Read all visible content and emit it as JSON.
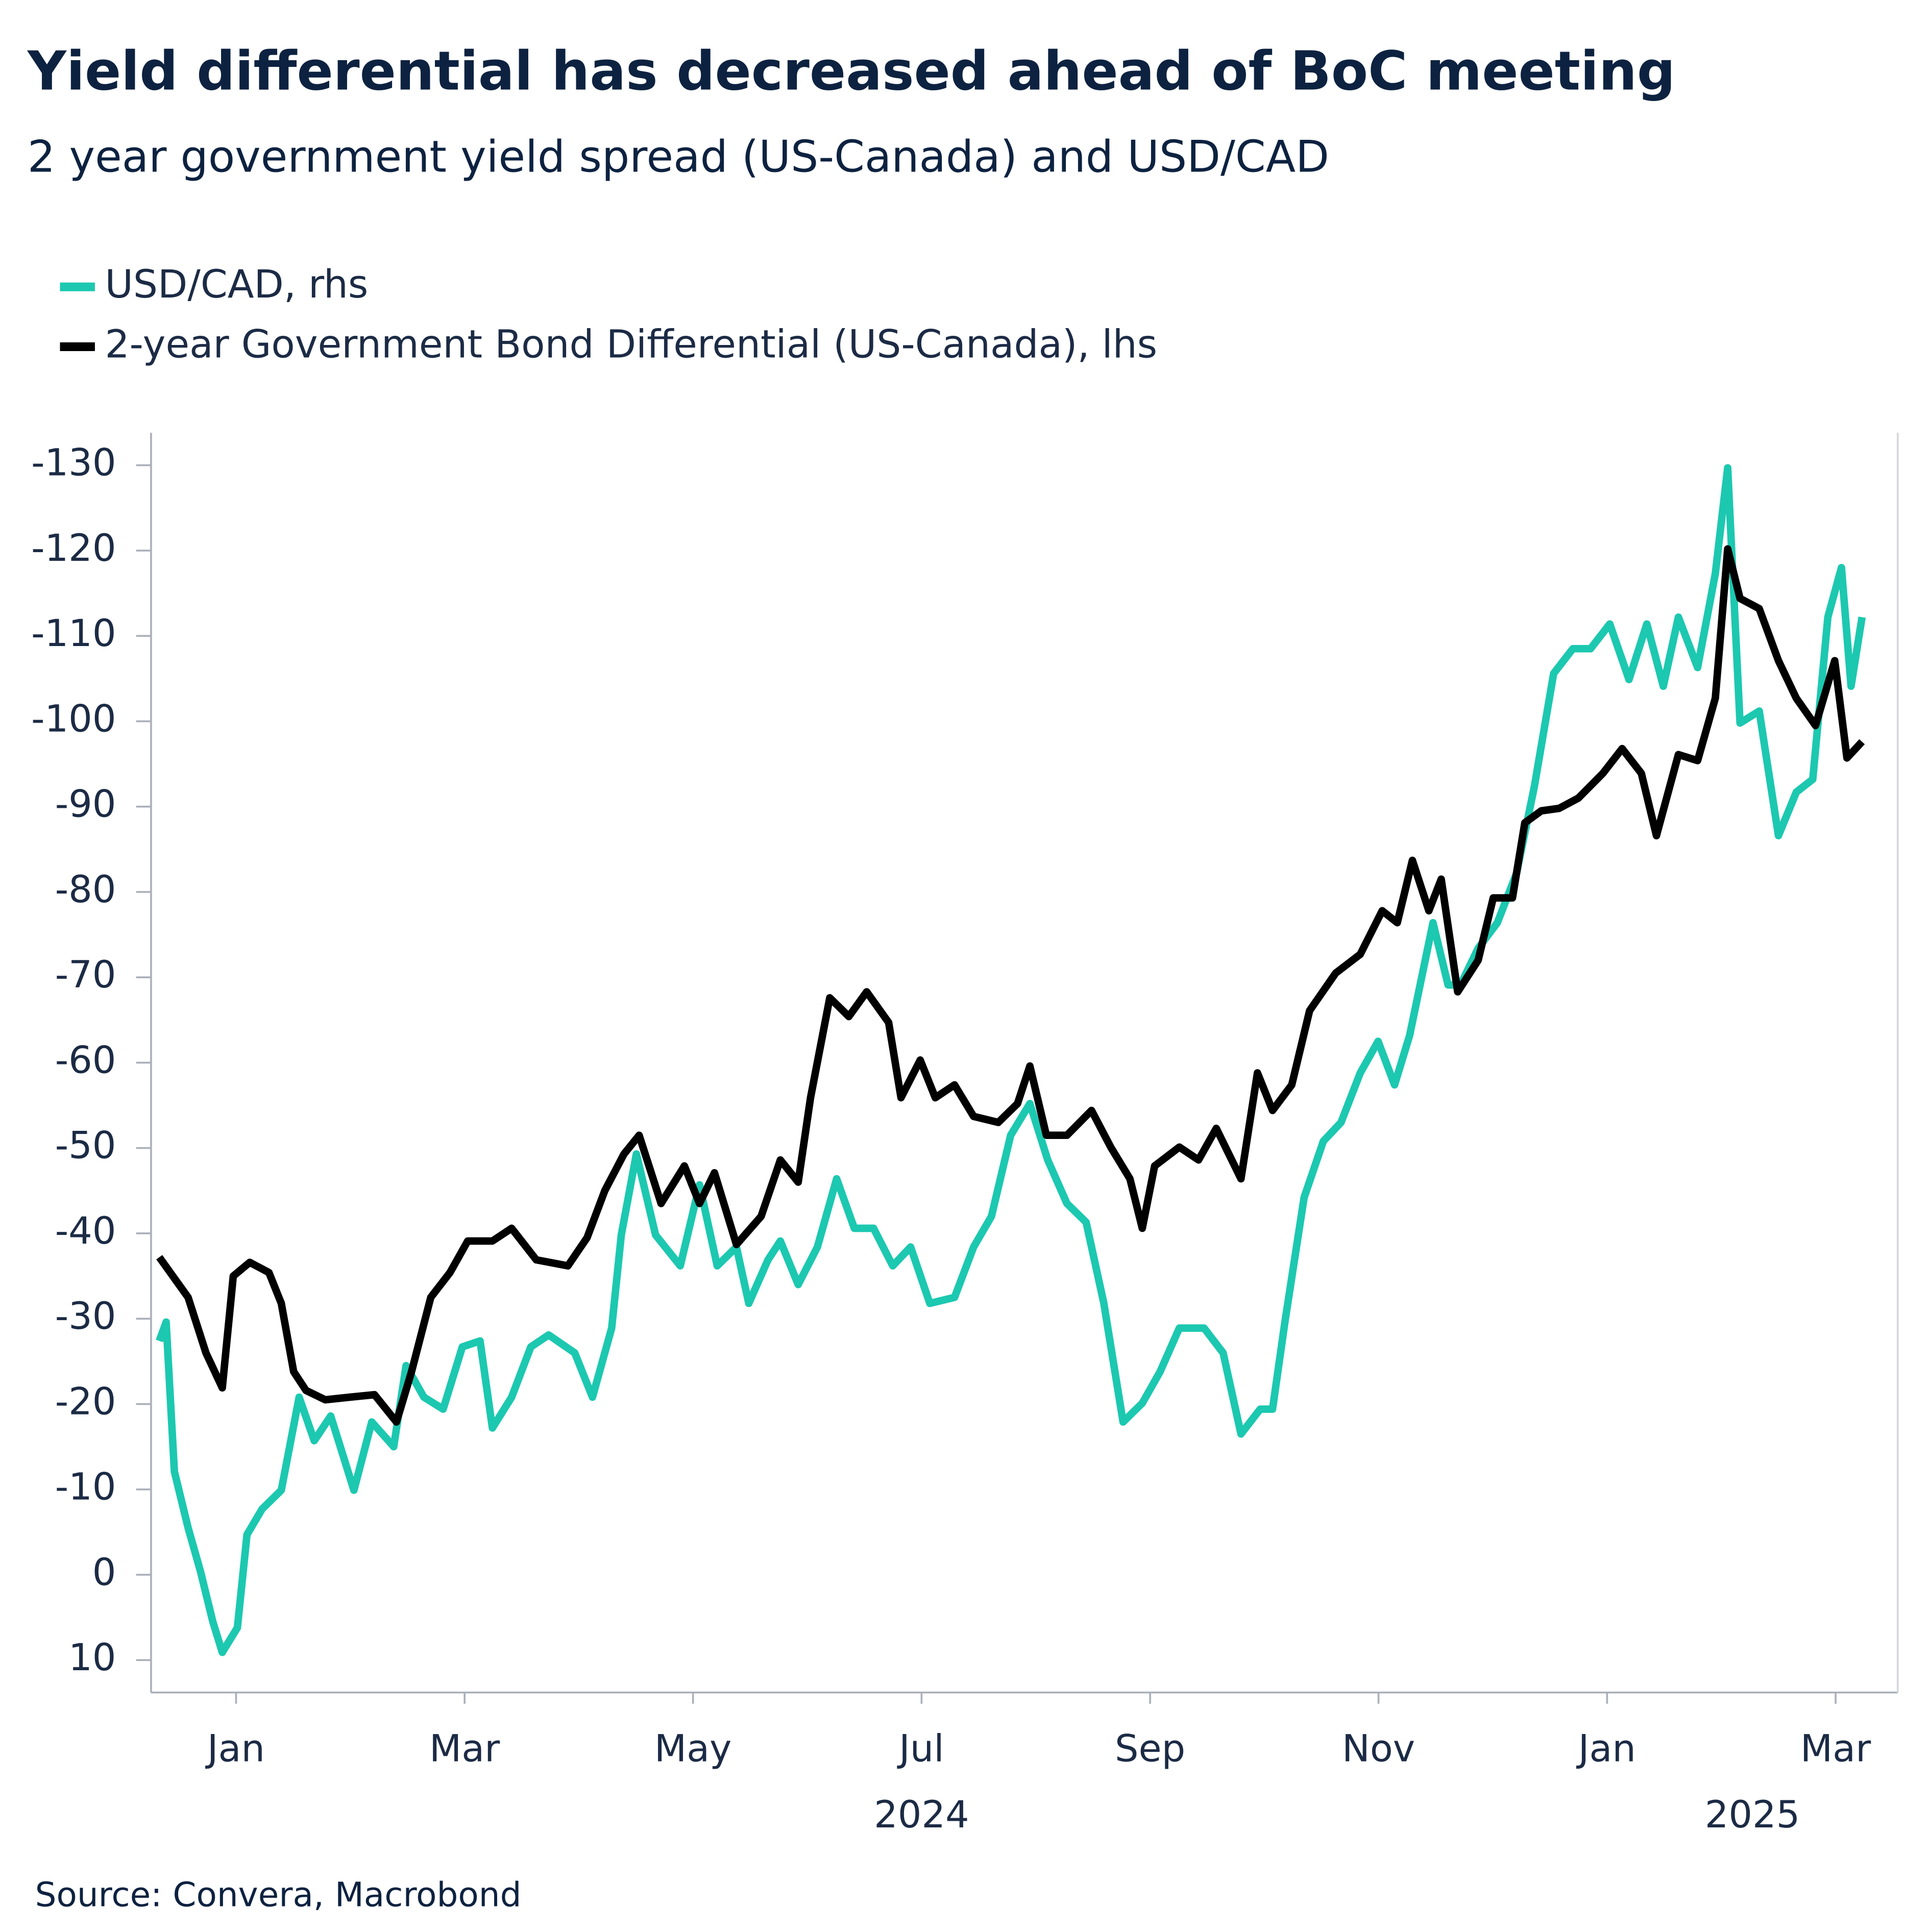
{
  "chart_data": {
    "type": "line",
    "title": "Yield differential has decreased ahead of BoC meeting",
    "subtitle": "2 year government yield spread (US-Canada) and USD/CAD",
    "source": "Source: Convera, Macrobond",
    "ylim": [
      13.8,
      -133.8
    ],
    "yticks": [
      -130,
      -120,
      -110,
      -100,
      -90,
      -80,
      -70,
      -60,
      -50,
      -40,
      -30,
      -20,
      -10,
      0,
      10
    ],
    "xlim": [
      2023.938,
      2025.212
    ],
    "xticks": [
      {
        "value": 2024.0,
        "label": "Jan"
      },
      {
        "value": 2024.1667,
        "label": "Mar"
      },
      {
        "value": 2024.3333,
        "label": "May"
      },
      {
        "value": 2024.5,
        "label": "Jul"
      },
      {
        "value": 2024.6667,
        "label": "Sep"
      },
      {
        "value": 2024.8333,
        "label": "Nov"
      },
      {
        "value": 2025.0,
        "label": "Jan"
      },
      {
        "value": 2025.1667,
        "label": "Mar"
      }
    ],
    "years": [
      "2024",
      "2025"
    ],
    "series": [
      {
        "name": "USD/CAD, rhs",
        "color": "#1cc8b0",
        "x": [
          2023.944,
          2023.949,
          2023.955,
          2023.965,
          2023.974,
          2023.983,
          2023.99,
          2024.001,
          2024.008,
          2024.019,
          2024.033,
          2024.046,
          2024.057,
          2024.069,
          2024.086,
          2024.099,
          2024.115,
          2024.124,
          2024.137,
          2024.151,
          2024.165,
          2024.178,
          2024.187,
          2024.201,
          2024.215,
          2024.228,
          2024.247,
          2024.26,
          2024.274,
          2024.281,
          2024.292,
          2024.306,
          2024.324,
          2024.338,
          2024.351,
          2024.365,
          2024.374,
          2024.388,
          2024.397,
          2024.41,
          2024.424,
          2024.438,
          2024.451,
          2024.465,
          2024.479,
          2024.492,
          2024.506,
          2024.524,
          2024.538,
          2024.551,
          2024.565,
          2024.579,
          2024.592,
          2024.606,
          2024.62,
          2024.633,
          2024.647,
          2024.661,
          2024.674,
          2024.688,
          2024.706,
          2024.72,
          2024.733,
          2024.747,
          2024.756,
          2024.765,
          2024.779,
          2024.793,
          2024.806,
          2024.82,
          2024.833,
          2024.845,
          2024.856,
          2024.873,
          2024.884,
          2024.893,
          2024.906,
          2024.92,
          2024.934,
          2024.947,
          2024.961,
          2024.975,
          2024.988,
          2025.002,
          2025.016,
          2025.029,
          2025.041,
          2025.052,
          2025.066,
          2025.079,
          2025.088,
          2025.097,
          2025.111,
          2025.125,
          2025.138,
          2025.15,
          2025.161,
          2025.171,
          2025.178,
          2025.186
        ],
        "values": [
          -27.4,
          -29.6,
          -12.1,
          -5.5,
          -0.4,
          5.5,
          9.1,
          6.2,
          -4.7,
          -7.7,
          -9.9,
          -20.8,
          -15.7,
          -18.6,
          -9.9,
          -17.9,
          -15,
          -24.5,
          -20.8,
          -19.4,
          -26.7,
          -27.4,
          -17.2,
          -20.8,
          -26.7,
          -28.1,
          -26,
          -20.8,
          -28.9,
          -39.8,
          -49.3,
          -39.8,
          -36.2,
          -45.7,
          -36.2,
          -38.4,
          -31.8,
          -36.9,
          -39.1,
          -34,
          -38.4,
          -46.4,
          -40.6,
          -40.6,
          -36.2,
          -38.4,
          -31.8,
          -32.5,
          -38.4,
          -42,
          -51.5,
          -55.2,
          -48.6,
          -43.5,
          -41.3,
          -31.8,
          -17.9,
          -20.1,
          -23.8,
          -28.9,
          -28.9,
          -26,
          -16.5,
          -19.4,
          -19.4,
          -29.6,
          -44.2,
          -50.8,
          -53,
          -58.8,
          -62.5,
          -57.4,
          -63.2,
          -76.4,
          -69.1,
          -69.1,
          -73.4,
          -76.4,
          -82.2,
          -92.4,
          -105.6,
          -108.5,
          -108.5,
          -111.4,
          -104.9,
          -111.4,
          -104.1,
          -112.2,
          -106.3,
          -117.3,
          -129.7,
          -99.8,
          -101.2,
          -86.6,
          -91.7,
          -93.2,
          -112.2,
          -118,
          -104.1,
          -112.2
        ]
      },
      {
        "name": "2-year Government Bond Differential (US-Canada), lhs",
        "color": "#000000",
        "x": [
          2023.944,
          2023.965,
          2023.978,
          2023.99,
          2023.998,
          2024.01,
          2024.024,
          2024.033,
          2024.042,
          2024.051,
          2024.065,
          2024.083,
          2024.101,
          2024.117,
          2024.128,
          2024.142,
          2024.156,
          2024.169,
          2024.187,
          2024.201,
          2024.219,
          2024.242,
          2024.256,
          2024.269,
          2024.283,
          2024.294,
          2024.31,
          2024.327,
          2024.338,
          2024.349,
          2024.365,
          2024.383,
          2024.397,
          2024.41,
          2024.419,
          2024.433,
          2024.447,
          2024.46,
          2024.476,
          2024.485,
          2024.499,
          2024.51,
          2024.524,
          2024.538,
          2024.556,
          2024.57,
          2024.579,
          2024.591,
          2024.606,
          2024.624,
          2024.638,
          2024.652,
          2024.661,
          2024.67,
          2024.688,
          2024.702,
          2024.715,
          2024.733,
          2024.745,
          2024.756,
          2024.77,
          2024.783,
          2024.802,
          2024.82,
          2024.836,
          2024.847,
          2024.858,
          2024.87,
          2024.879,
          2024.891,
          2024.906,
          2024.917,
          2024.931,
          2024.94,
          2024.952,
          2024.965,
          2024.979,
          2024.997,
          2025.011,
          2025.025,
          2025.036,
          2025.052,
          2025.066,
          2025.079,
          2025.088,
          2025.097,
          2025.111,
          2025.125,
          2025.138,
          2025.152,
          2025.166,
          2025.175,
          2025.186
        ],
        "values": [
          -37.2,
          -32.5,
          -26,
          -21.9,
          -35,
          -36.6,
          -35.4,
          -31.8,
          -23.8,
          -21.6,
          -20.5,
          -20.8,
          -21.1,
          -17.9,
          -23.8,
          -32.5,
          -35.4,
          -39.1,
          -39.1,
          -40.6,
          -36.9,
          -36.2,
          -39.5,
          -45,
          -49.3,
          -51.5,
          -43.5,
          -47.9,
          -43.5,
          -47.1,
          -38.7,
          -42,
          -48.6,
          -46,
          -55.9,
          -67.6,
          -65.4,
          -68.3,
          -64.7,
          -55.9,
          -60.3,
          -55.9,
          -57.4,
          -53.7,
          -53,
          -55.2,
          -59.6,
          -51.5,
          -51.5,
          -54.4,
          -50.1,
          -46.4,
          -40.6,
          -47.9,
          -50.1,
          -48.6,
          -52.3,
          -46.4,
          -58.8,
          -54.4,
          -57.4,
          -66.1,
          -70.5,
          -72.7,
          -77.8,
          -76.4,
          -83.7,
          -77.8,
          -81.5,
          -68.3,
          -72,
          -79.3,
          -79.3,
          -88.1,
          -89.5,
          -89.8,
          -91,
          -93.9,
          -96.8,
          -93.9,
          -86.6,
          -96.1,
          -95.4,
          -102.7,
          -120.2,
          -114.4,
          -113.2,
          -107.1,
          -102.7,
          -99.5,
          -107.1,
          -95.7,
          -97.6
        ]
      }
    ]
  }
}
